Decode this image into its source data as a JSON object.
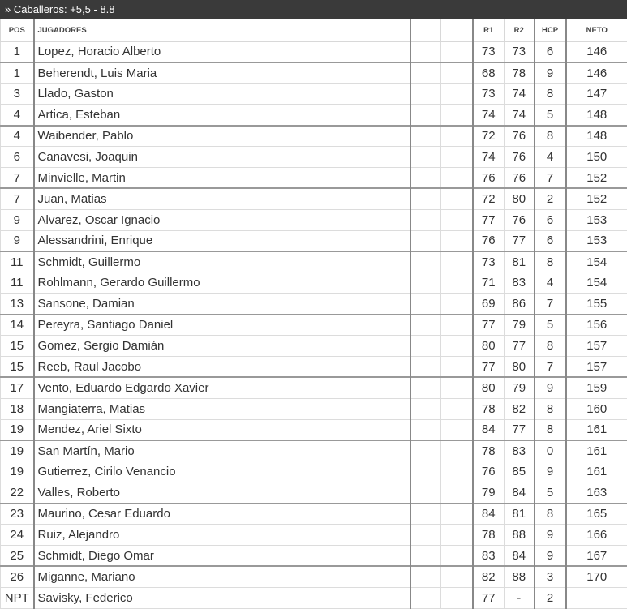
{
  "title": "» Caballeros: +5,5 - 8.8",
  "headers": {
    "pos": "POS",
    "jugadores": "JUGADORES",
    "r1": "R1",
    "r2": "R2",
    "hcp": "HCP",
    "neto": "NETO"
  },
  "rows": [
    [
      "1",
      "Lopez, Horacio Alberto",
      "73",
      "73",
      "6",
      "146"
    ],
    [
      "1",
      "Beherendt, Luis Maria",
      "68",
      "78",
      "9",
      "146"
    ],
    [
      "3",
      "Llado, Gaston",
      "73",
      "74",
      "8",
      "147"
    ],
    [
      "4",
      "Artica, Esteban",
      "74",
      "74",
      "5",
      "148"
    ],
    [
      "4",
      "Waibender, Pablo",
      "72",
      "76",
      "8",
      "148"
    ],
    [
      "6",
      "Canavesi, Joaquin",
      "74",
      "76",
      "4",
      "150"
    ],
    [
      "7",
      "Minvielle, Martin",
      "76",
      "76",
      "7",
      "152"
    ],
    [
      "7",
      "Juan, Matias",
      "72",
      "80",
      "2",
      "152"
    ],
    [
      "9",
      "Alvarez, Oscar Ignacio",
      "77",
      "76",
      "6",
      "153"
    ],
    [
      "9",
      "Alessandrini, Enrique",
      "76",
      "77",
      "6",
      "153"
    ],
    [
      "11",
      "Schmidt, Guillermo",
      "73",
      "81",
      "8",
      "154"
    ],
    [
      "11",
      "Rohlmann, Gerardo Guillermo",
      "71",
      "83",
      "4",
      "154"
    ],
    [
      "13",
      "Sansone, Damian",
      "69",
      "86",
      "7",
      "155"
    ],
    [
      "14",
      "Pereyra, Santiago Daniel",
      "77",
      "79",
      "5",
      "156"
    ],
    [
      "15",
      "Gomez, Sergio Damián",
      "80",
      "77",
      "8",
      "157"
    ],
    [
      "15",
      "Reeb, Raul Jacobo",
      "77",
      "80",
      "7",
      "157"
    ],
    [
      "17",
      "Vento, Eduardo Edgardo Xavier",
      "80",
      "79",
      "9",
      "159"
    ],
    [
      "18",
      "Mangiaterra, Matias",
      "78",
      "82",
      "8",
      "160"
    ],
    [
      "19",
      "Mendez, Ariel Sixto",
      "84",
      "77",
      "8",
      "161"
    ],
    [
      "19",
      "San Martín, Mario",
      "78",
      "83",
      "0",
      "161"
    ],
    [
      "19",
      "Gutierrez, Cirilo Venancio",
      "76",
      "85",
      "9",
      "161"
    ],
    [
      "22",
      "Valles, Roberto",
      "79",
      "84",
      "5",
      "163"
    ],
    [
      "23",
      "Maurino, Cesar Eduardo",
      "84",
      "81",
      "8",
      "165"
    ],
    [
      "24",
      "Ruiz, Alejandro",
      "78",
      "88",
      "9",
      "166"
    ],
    [
      "25",
      "Schmidt, Diego Omar",
      "83",
      "84",
      "9",
      "167"
    ],
    [
      "26",
      "Miganne, Mariano",
      "82",
      "88",
      "3",
      "170"
    ],
    [
      "NPT",
      "Savisky, Federico",
      "77",
      "-",
      "2",
      ""
    ]
  ]
}
